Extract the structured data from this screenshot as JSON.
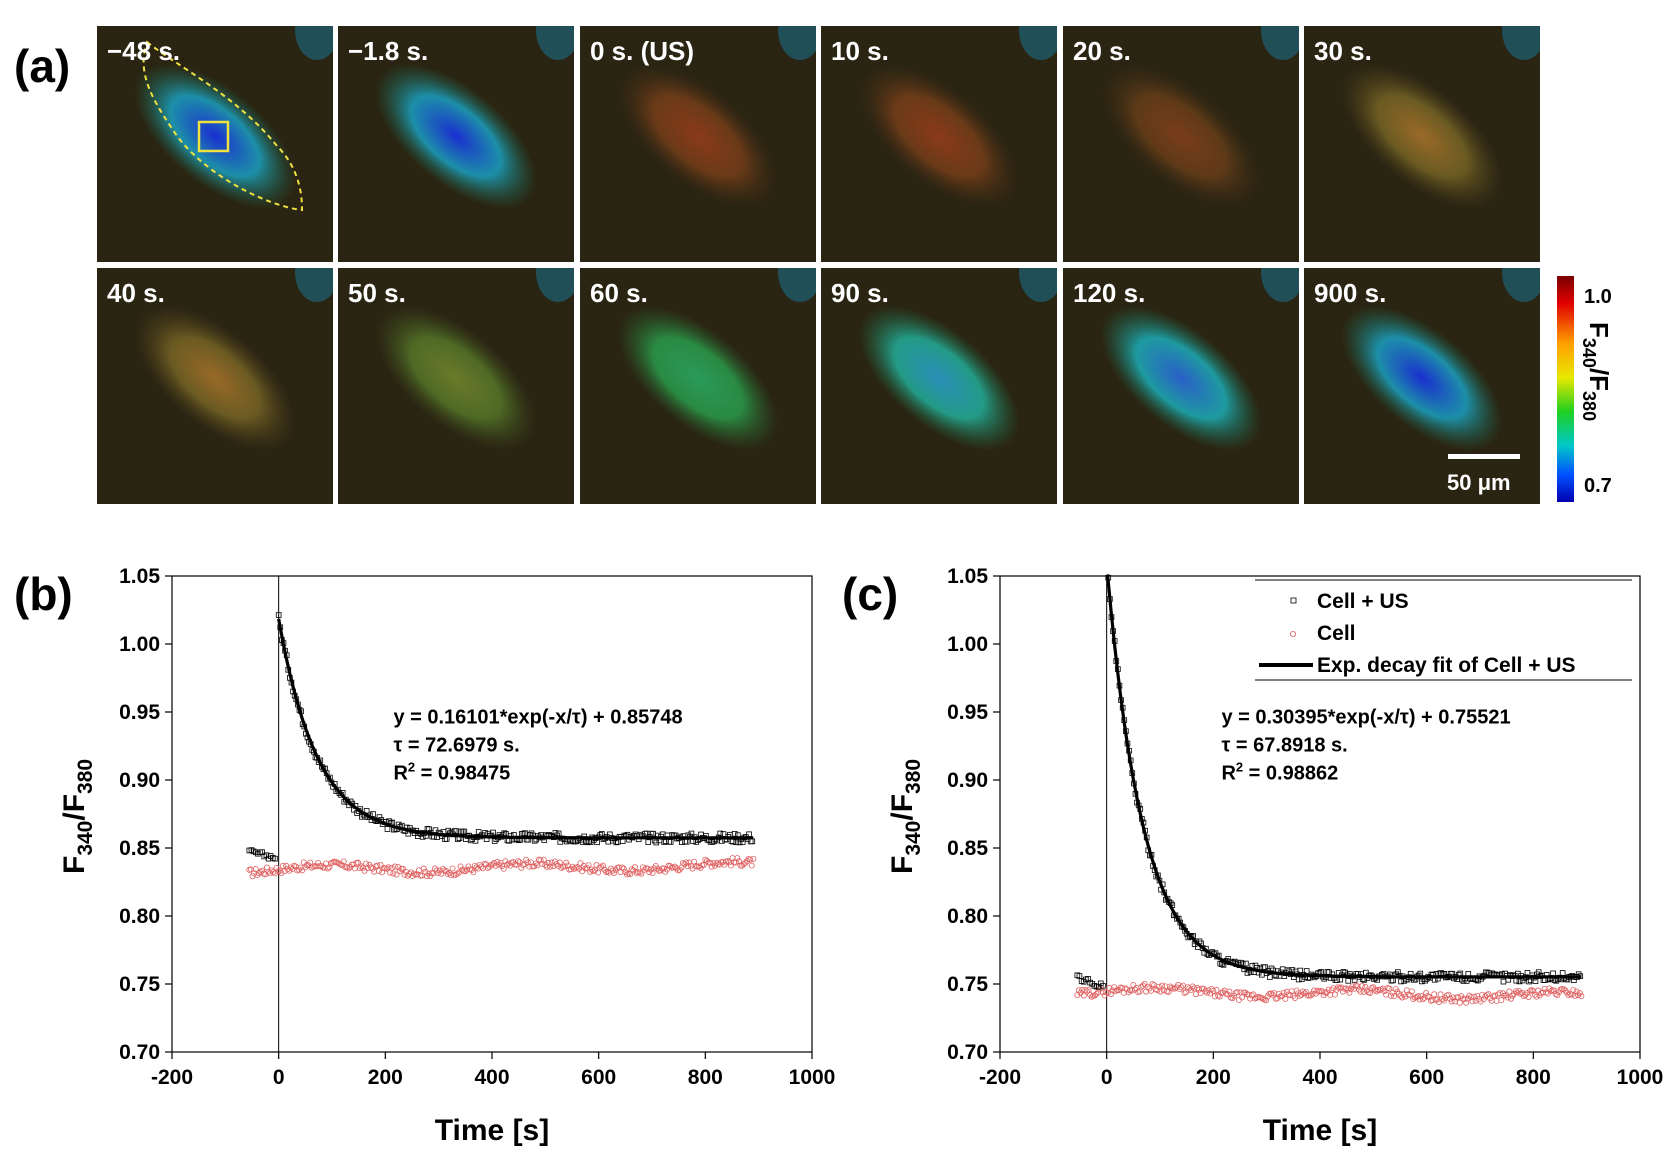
{
  "panel_labels": {
    "a": "(a)",
    "b": "(b)",
    "c": "(c)"
  },
  "micrographs": {
    "frames": [
      {
        "label": "−48 s.",
        "tint": "blue-strong",
        "outline": true
      },
      {
        "label": "−1.8 s.",
        "tint": "blue-strong"
      },
      {
        "label": "0 s. (US)",
        "tint": "red"
      },
      {
        "label": "10 s.",
        "tint": "red"
      },
      {
        "label": "20 s.",
        "tint": "red-dim"
      },
      {
        "label": "30 s.",
        "tint": "orange"
      },
      {
        "label": "40 s.",
        "tint": "orange"
      },
      {
        "label": "50 s.",
        "tint": "olive"
      },
      {
        "label": "60 s.",
        "tint": "green"
      },
      {
        "label": "90 s.",
        "tint": "cyan"
      },
      {
        "label": "120 s.",
        "tint": "blue-mid"
      },
      {
        "label": "900 s.",
        "tint": "blue-strong"
      }
    ],
    "scale_bar": "50 μm",
    "colorbar": {
      "max": "1.0",
      "min": "0.7",
      "title_main": "F",
      "sub1": "340",
      "sep": "/F",
      "sub2": "380"
    }
  },
  "tint_colors": {
    "blue-strong": [
      "#1a2fd0",
      "#1d8fa8",
      "#1f6a4a"
    ],
    "blue-mid": [
      "#2a5fc8",
      "#1e9aa0",
      "#1f6a48"
    ],
    "cyan": [
      "#2a8fb8",
      "#239a86",
      "#226a40"
    ],
    "green": [
      "#2a9a5a",
      "#2a8a42",
      "#2a5a2a"
    ],
    "olive": [
      "#6a7a2a",
      "#4f6a25",
      "#3a4a1e"
    ],
    "orange": [
      "#9a6a28",
      "#6a5a22",
      "#4a3e1c"
    ],
    "red": [
      "#8a3a1a",
      "#6a3a18",
      "#3e2c15"
    ],
    "red-dim": [
      "#7a3c1a",
      "#5e3a18",
      "#3c2c15"
    ]
  },
  "chart_data": [
    {
      "id": "b",
      "type": "scatter",
      "xlabel": "Time [s]",
      "ylabel_main": "F",
      "ylabel_sub1": "340",
      "ylabel_sep": "/F",
      "ylabel_sub2": "380",
      "xlim": [
        -200,
        1000
      ],
      "ylim": [
        0.7,
        1.05
      ],
      "xticks": [
        -200,
        0,
        200,
        400,
        600,
        800,
        1000
      ],
      "xtick_labels": [
        "-200",
        "0",
        "200",
        "400",
        "600",
        "800",
        "1000"
      ],
      "yticks": [
        0.7,
        0.75,
        0.8,
        0.85,
        0.9,
        0.95,
        1.0,
        1.05
      ],
      "ytick_labels": [
        "0.70",
        "0.75",
        "0.80",
        "0.85",
        "0.90",
        "0.95",
        "1.00",
        "1.05"
      ],
      "vline_x": 0,
      "series": [
        {
          "name": "Cell + US",
          "marker": "square",
          "color": "#000000",
          "pre": {
            "x_start": -55,
            "x_end": -5,
            "y_start": 0.847,
            "y_end": 0.843
          },
          "fit": {
            "A": 0.16101,
            "tau": 72.6979,
            "C": 0.85748,
            "x_end": 890
          }
        },
        {
          "name": "Cell",
          "marker": "circle",
          "color": "#e06060",
          "x_start": -55,
          "x_end": 890,
          "y_base": 0.834,
          "y_end": 0.837
        },
        {
          "name": "Exp. decay fit of Cell + US",
          "line": true,
          "color": "#000000"
        }
      ],
      "annotation": {
        "line1": "y = 0.16101*exp(-x/τ) + 0.85748",
        "line2": "τ = 72.6979 s.",
        "line3_pre": "R",
        "line3_sup": "2",
        "line3_post": " = 0.98475"
      },
      "legend": false
    },
    {
      "id": "c",
      "type": "scatter",
      "xlabel": "Time [s]",
      "ylabel_main": "F",
      "ylabel_sub1": "340",
      "ylabel_sep": "/F",
      "ylabel_sub2": "380",
      "xlim": [
        -200,
        1000
      ],
      "ylim": [
        0.7,
        1.05
      ],
      "xticks": [
        -200,
        0,
        200,
        400,
        600,
        800,
        1000
      ],
      "xtick_labels": [
        "-200",
        "0",
        "200",
        "400",
        "600",
        "800",
        "1000"
      ],
      "yticks": [
        0.7,
        0.75,
        0.8,
        0.85,
        0.9,
        0.95,
        1.0,
        1.05
      ],
      "ytick_labels": [
        "0.70",
        "0.75",
        "0.80",
        "0.85",
        "0.90",
        "0.95",
        "1.00",
        "1.05"
      ],
      "vline_x": 0,
      "series": [
        {
          "name": "Cell + US",
          "marker": "square",
          "color": "#000000",
          "pre": {
            "x_start": -55,
            "x_end": -5,
            "y_start": 0.755,
            "y_end": 0.748
          },
          "fit": {
            "A": 0.30395,
            "tau": 67.8918,
            "C": 0.75521,
            "x_end": 890
          }
        },
        {
          "name": "Cell",
          "marker": "circle",
          "color": "#e06060",
          "x_start": -55,
          "x_end": 890,
          "y_base": 0.745,
          "y_end": 0.741
        },
        {
          "name": "Exp. decay fit of Cell + US",
          "line": true,
          "color": "#000000"
        }
      ],
      "annotation": {
        "line1": "y = 0.30395*exp(-x/τ) + 0.75521",
        "line2": "τ = 67.8918 s.",
        "line3_pre": "R",
        "line3_sup": "2",
        "line3_post": " = 0.98862"
      },
      "legend": true,
      "legend_position": "top-right"
    }
  ]
}
